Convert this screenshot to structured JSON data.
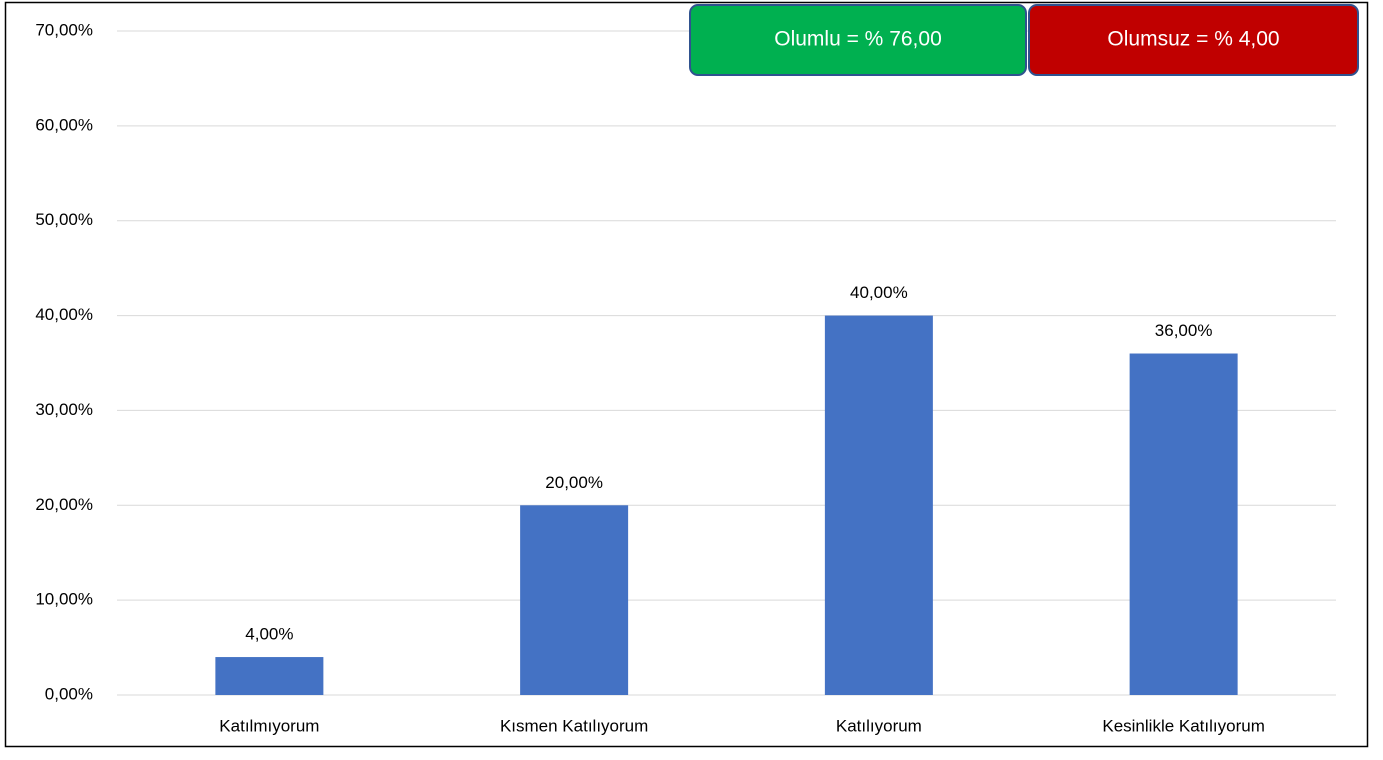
{
  "chart_data": {
    "type": "bar",
    "categories": [
      "Katılmıyorum",
      "Kısmen Katılıyorum",
      "Katılıyorum",
      "Kesinlikle Katılıyorum"
    ],
    "values": [
      4,
      20,
      40,
      36
    ],
    "value_labels": [
      "4,00%",
      "20,00%",
      "40,00%",
      "36,00%"
    ],
    "color": "#4472c4",
    "ylim": [
      0,
      70
    ],
    "yticks": [
      {
        "value": 0,
        "label": "0,00%"
      },
      {
        "value": 10,
        "label": "10,00%"
      },
      {
        "value": 20,
        "label": "20,00%"
      },
      {
        "value": 30,
        "label": "30,00%"
      },
      {
        "value": 40,
        "label": "40,00%"
      },
      {
        "value": 50,
        "label": "50,00%"
      },
      {
        "value": 60,
        "label": "60,00%"
      },
      {
        "value": 70,
        "label": "70,00%"
      }
    ],
    "grid": true,
    "annotations": [
      {
        "text": "Olumlu = % 76,00",
        "color": "#00b050"
      },
      {
        "text": "Olumsuz = % 4,00",
        "color": "#c00000"
      }
    ]
  }
}
